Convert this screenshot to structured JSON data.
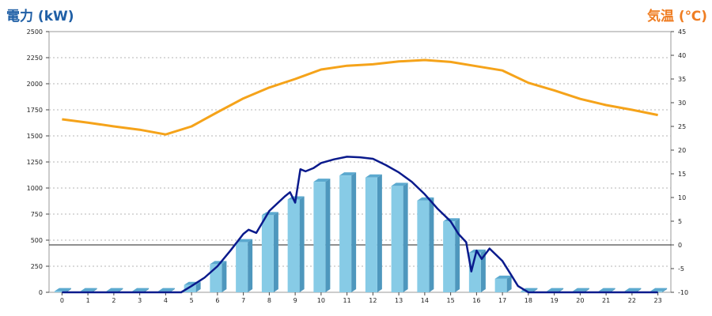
{
  "chart_data": {
    "type": "bar+line",
    "left_axis_label": "電力 (kW)",
    "right_axis_label": "気温 (℃)",
    "x_categories": [
      "0",
      "1",
      "2",
      "3",
      "4",
      "5",
      "6",
      "7",
      "8",
      "9",
      "10",
      "11",
      "12",
      "13",
      "14",
      "15",
      "16",
      "17",
      "18",
      "19",
      "20",
      "21",
      "22",
      "23"
    ],
    "y_left": {
      "min": 0,
      "max": 2500,
      "ticks": [
        0,
        250,
        500,
        750,
        1000,
        1250,
        1500,
        1750,
        2000,
        2250,
        2500
      ]
    },
    "y_right": {
      "min": -10,
      "max": 45,
      "ticks": [
        -10,
        -5,
        0,
        5,
        10,
        15,
        20,
        25,
        30,
        35,
        40,
        45
      ]
    },
    "grid": true,
    "colors": {
      "bar_front": "#87cbe6",
      "bar_side": "#4e97bd",
      "bar_top": "#5ba9cf",
      "power_line": "#0a1a8c",
      "temp_line": "#f5a31a",
      "left_label": "#1f5fa6",
      "right_label": "#ef7d22"
    },
    "series": [
      {
        "name": "bars",
        "type": "bar",
        "axis": "left",
        "values": [
          10,
          10,
          10,
          10,
          10,
          70,
          270,
          480,
          740,
          890,
          1060,
          1120,
          1100,
          1020,
          880,
          680,
          380,
          130,
          10,
          10,
          10,
          10,
          10,
          10
        ]
      },
      {
        "name": "power",
        "type": "line",
        "axis": "left",
        "points": [
          [
            0,
            0
          ],
          [
            4.6,
            0
          ],
          [
            5,
            60
          ],
          [
            5.5,
            140
          ],
          [
            6,
            250
          ],
          [
            6.5,
            400
          ],
          [
            7,
            560
          ],
          [
            7.2,
            600
          ],
          [
            7.5,
            570
          ],
          [
            8,
            780
          ],
          [
            8.6,
            920
          ],
          [
            8.8,
            960
          ],
          [
            9,
            860
          ],
          [
            9.2,
            1180
          ],
          [
            9.4,
            1160
          ],
          [
            9.7,
            1190
          ],
          [
            10,
            1240
          ],
          [
            10.5,
            1275
          ],
          [
            11,
            1300
          ],
          [
            11.5,
            1295
          ],
          [
            12,
            1280
          ],
          [
            12.5,
            1220
          ],
          [
            13,
            1150
          ],
          [
            13.5,
            1060
          ],
          [
            14,
            940
          ],
          [
            14.5,
            800
          ],
          [
            15,
            680
          ],
          [
            15.3,
            560
          ],
          [
            15.6,
            480
          ],
          [
            15.8,
            200
          ],
          [
            16,
            400
          ],
          [
            16.2,
            320
          ],
          [
            16.5,
            420
          ],
          [
            17,
            300
          ],
          [
            17.3,
            180
          ],
          [
            17.6,
            60
          ],
          [
            18,
            0
          ],
          [
            23,
            0
          ]
        ]
      },
      {
        "name": "temperature",
        "type": "line",
        "axis": "right",
        "values": [
          26.5,
          25.8,
          25.0,
          24.3,
          23.3,
          25.0,
          28.0,
          30.9,
          33.2,
          35.0,
          37.0,
          37.8,
          38.1,
          38.7,
          39.0,
          38.6,
          37.7,
          36.8,
          34.2,
          32.6,
          30.8,
          29.5,
          28.5,
          27.4
        ]
      }
    ],
    "reference_line": {
      "axis": "right",
      "value": 0
    }
  }
}
